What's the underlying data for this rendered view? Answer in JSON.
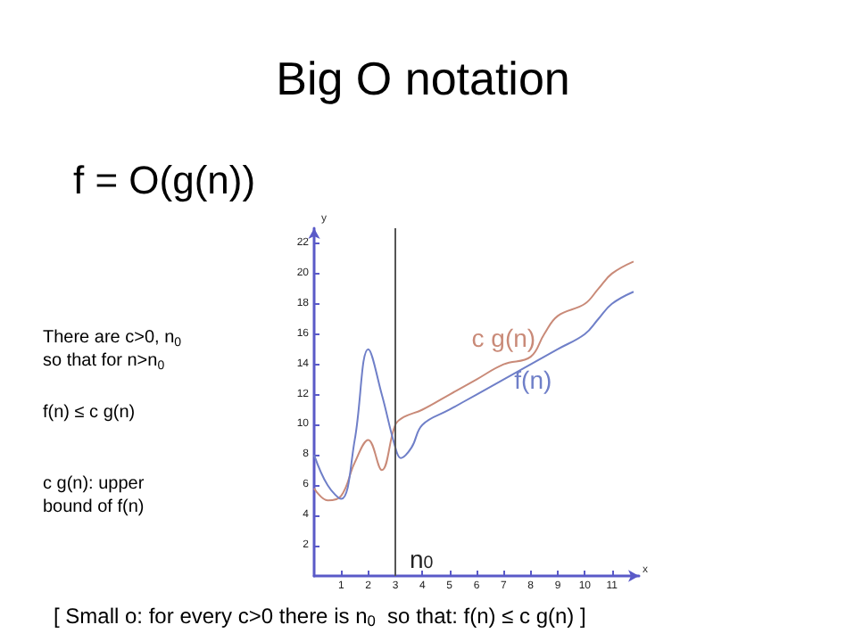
{
  "chart_data": {
    "type": "line",
    "title": "Big O notation",
    "subtitle": "f = O(g(n))",
    "xlabel": "x",
    "ylabel": "y",
    "xlim": [
      0,
      12
    ],
    "ylim": [
      0,
      23
    ],
    "xticks": [
      1,
      2,
      3,
      4,
      5,
      6,
      7,
      8,
      9,
      10,
      11
    ],
    "yticks": [
      2,
      4,
      6,
      8,
      10,
      12,
      14,
      16,
      18,
      20,
      22
    ],
    "grid": false,
    "legend": false,
    "marker": "none",
    "line_style": "solid",
    "series": [
      {
        "name": "c g(n)",
        "color": "#c98a78",
        "x": [
          0,
          0.5,
          1,
          1.5,
          2,
          2.5,
          3,
          3.3,
          4,
          5,
          6,
          7,
          8,
          8.5,
          9,
          10,
          10.5,
          11,
          11.8
        ],
        "values": [
          5.8,
          5,
          5.3,
          7.5,
          9,
          7,
          10,
          10.5,
          11,
          12,
          13,
          14,
          14.5,
          16,
          17.2,
          18,
          19,
          20,
          20.8
        ]
      },
      {
        "name": "f(n)",
        "color": "#6f7fc8",
        "x": [
          0,
          0.5,
          1,
          1.5,
          2,
          2.5,
          3,
          3.2,
          3.6,
          4,
          5,
          6,
          7,
          8,
          9,
          10,
          10.5,
          11,
          11.8
        ],
        "values": [
          8,
          6,
          5.1,
          9,
          15,
          12,
          8.5,
          7.8,
          8.5,
          10,
          11,
          12,
          13,
          14,
          15,
          16,
          17,
          18,
          18.8
        ]
      }
    ],
    "ref_lines": [
      {
        "axis": "x",
        "value": 3,
        "label": "n$_{0}$",
        "color": "#555555"
      }
    ],
    "annotations": [
      "There are c>0, n$_{0}$\nso that for n>n$_{0}$",
      "f(n) ≤ c g(n)",
      "c g(n): upper\nbound of f(n)",
      "[ Small o: for every c>0 there is n$_{0}$  so that: f(n) ≤ c g(n) ]"
    ]
  }
}
